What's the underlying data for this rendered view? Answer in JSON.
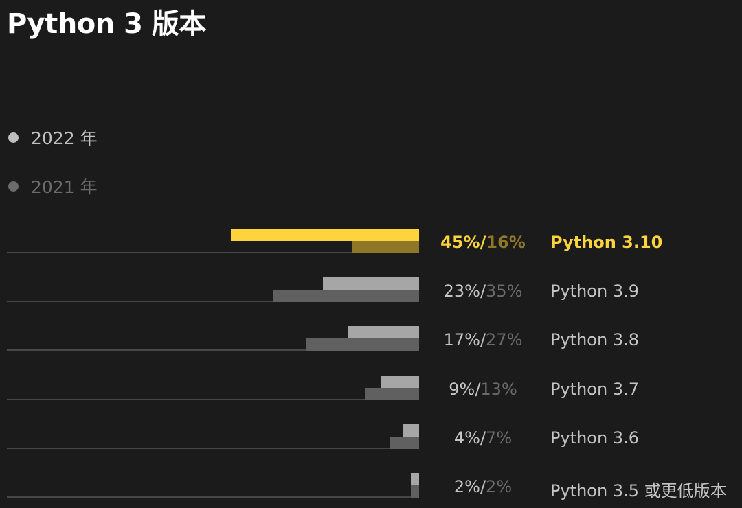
{
  "title": "Python 3 版本",
  "colors": {
    "background": "#1b1b1c",
    "highlight": "#fdd43b",
    "highlight_muted": "#8f7728",
    "bar_2022": "#a6a6a6",
    "bar_2021": "#606060",
    "text_2022": "#c4c4c4",
    "text_2021": "#6b6b6b",
    "legend_2022": "#bfbfbf",
    "legend_2021": "#6b6b6b"
  },
  "legend": [
    {
      "label": "2022 年",
      "color": "#bfbfbf"
    },
    {
      "label": "2021 年",
      "color": "#6b6b6b"
    }
  ],
  "chart_data": {
    "type": "bar",
    "orientation": "horizontal",
    "title": "Python 3 版本",
    "series_names": [
      "2022 年",
      "2021 年"
    ],
    "value_unit": "%",
    "xlim": [
      0,
      50
    ],
    "categories": [
      "Python 3.10",
      "Python 3.9",
      "Python 3.8",
      "Python 3.7",
      "Python 3.6",
      "Python 3.5 或更低版本"
    ],
    "series": [
      {
        "name": "2022 年",
        "values": [
          45,
          23,
          17,
          9,
          4,
          2
        ]
      },
      {
        "name": "2021 年",
        "values": [
          16,
          35,
          27,
          13,
          7,
          2
        ]
      }
    ],
    "highlighted_category": "Python 3.10",
    "labels": [
      {
        "v2022": "45%",
        "sep": "/",
        "v2021": "16%"
      },
      {
        "v2022": "23%",
        "sep": "/",
        "v2021": "35%"
      },
      {
        "v2022": "17%",
        "sep": "/",
        "v2021": "27%"
      },
      {
        "v2022": "9%",
        "sep": "/",
        "v2021": "13%"
      },
      {
        "v2022": "4%",
        "sep": "/",
        "v2021": "7%"
      },
      {
        "v2022": "2%",
        "sep": "/",
        "v2021": "2%"
      }
    ],
    "grid": false,
    "legend_position": "top-left"
  }
}
